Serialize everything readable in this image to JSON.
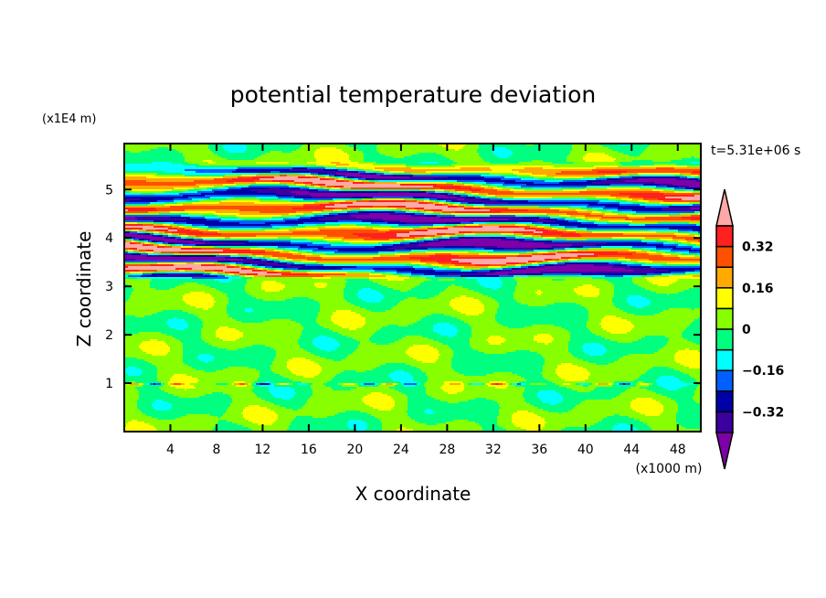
{
  "chart_data": {
    "type": "heatmap",
    "subtype": "filled-contour",
    "title": "potential temperature deviation",
    "xlabel": "X coordinate",
    "ylabel": "Z coordinate",
    "x_unit_label": "(x1000 m)",
    "y_unit_label": "(x1E4 m)",
    "time_label": "t=5.31e+06 s",
    "xlim": [
      0,
      50
    ],
    "ylim": [
      0,
      5.95
    ],
    "xticks": [
      4,
      8,
      12,
      16,
      20,
      24,
      28,
      32,
      36,
      40,
      44,
      48
    ],
    "xtick_labels": [
      "4",
      "8",
      "12",
      "16",
      "20",
      "24",
      "28",
      "32",
      "36",
      "40",
      "44",
      "48"
    ],
    "yticks": [
      1,
      2,
      3,
      4,
      5
    ],
    "ytick_labels": [
      "1",
      "2",
      "3",
      "4",
      "5"
    ],
    "levels": [
      -0.4,
      -0.32,
      -0.24,
      -0.16,
      -0.08,
      0,
      0.08,
      0.16,
      0.24,
      0.32,
      0.4
    ],
    "colors": [
      "#7d00a8",
      "#3c00a0",
      "#0000a8",
      "#0060ff",
      "#00ffff",
      "#00ff80",
      "#88ff00",
      "#ffff00",
      "#ffaa00",
      "#ff5000",
      "#ff2020",
      "#ffa8a8"
    ],
    "colorbar": {
      "labels": [
        "0.32",
        "0.16",
        "0",
        "-0.16",
        "-0.32"
      ],
      "label_values": [
        0.32,
        0.16,
        0,
        -0.16,
        -0.32
      ],
      "extend": "both"
    },
    "field_description_regions": {
      "strong_layer_z_range": [
        3.2,
        5.45
      ],
      "strong_layer_amplitude": 0.5,
      "weak_region_amplitude": 0.08
    },
    "grid": false
  }
}
